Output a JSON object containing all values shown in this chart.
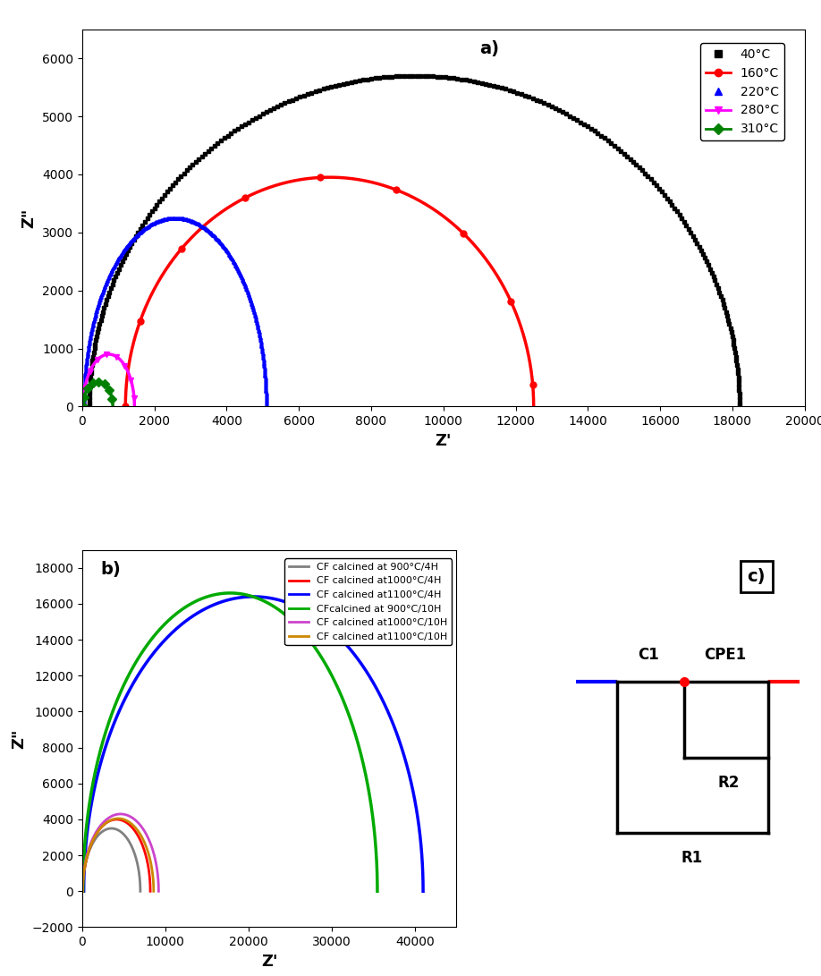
{
  "panel_a": {
    "label": "a)",
    "xlabel": "Z'",
    "ylabel": "Z\"",
    "xlim": [
      0,
      20000
    ],
    "ylim": [
      0,
      6500
    ],
    "xticks": [
      0,
      2000,
      4000,
      6000,
      8000,
      10000,
      12000,
      14000,
      16000,
      18000,
      20000
    ],
    "yticks": [
      0,
      1000,
      2000,
      3000,
      4000,
      5000,
      6000
    ],
    "series": [
      {
        "label": "40°C",
        "color": "#000000",
        "marker": "s",
        "start": 200,
        "end": 18200,
        "peak": 5700,
        "npts": 250,
        "lw": 0,
        "ms": 2.5
      },
      {
        "label": "160°C",
        "color": "#ff0000",
        "marker": "o",
        "start": 1200,
        "end": 12500,
        "peak": 3950,
        "npts": 100,
        "lw": 2.5,
        "ms": 5
      },
      {
        "label": "220°C",
        "color": "#0000ff",
        "marker": "^",
        "start": 50,
        "end": 5100,
        "peak": 3250,
        "npts": 350,
        "lw": 0,
        "ms": 2.5
      },
      {
        "label": "280°C",
        "color": "#ff00ff",
        "marker": "v",
        "start": 30,
        "end": 1450,
        "peak": 900,
        "npts": 60,
        "lw": 2.5,
        "ms": 5
      },
      {
        "label": "310°C",
        "color": "#008000",
        "marker": "D",
        "start": 30,
        "end": 850,
        "peak": 430,
        "npts": 40,
        "lw": 2.5,
        "ms": 5
      }
    ]
  },
  "panel_b": {
    "label": "b)",
    "xlabel": "Z'",
    "ylabel": "Z\"",
    "xlim": [
      0,
      45000
    ],
    "ylim": [
      -2000,
      19000
    ],
    "xticks": [
      0,
      10000,
      20000,
      30000,
      40000
    ],
    "yticks": [
      -2000,
      0,
      2000,
      4000,
      6000,
      8000,
      10000,
      12000,
      14000,
      16000,
      18000
    ],
    "series": [
      {
        "label": "CF calcined at 900°C/4H",
        "color": "#808080",
        "start": 50,
        "end": 7000,
        "peak": 3500,
        "lw": 2.0
      },
      {
        "label": "CF calcined at1000°C/4H",
        "color": "#ff0000",
        "start": 100,
        "end": 8200,
        "peak": 4000,
        "lw": 2.0
      },
      {
        "label": "CF calcined at1100°C/4H",
        "color": "#0000ff",
        "start": 200,
        "end": 41000,
        "peak": 16400,
        "lw": 2.5
      },
      {
        "label": "CFcalcined at 900°C/10H",
        "color": "#00aa00",
        "start": 100,
        "end": 35500,
        "peak": 16600,
        "lw": 2.5
      },
      {
        "label": "CF calcined at1000°C/10H",
        "color": "#cc44cc",
        "start": 50,
        "end": 9200,
        "peak": 4300,
        "lw": 2.0
      },
      {
        "label": "CF calcined at1100°C/10H",
        "color": "#cc8800",
        "start": 80,
        "end": 8600,
        "peak": 4050,
        "lw": 2.0
      }
    ]
  }
}
